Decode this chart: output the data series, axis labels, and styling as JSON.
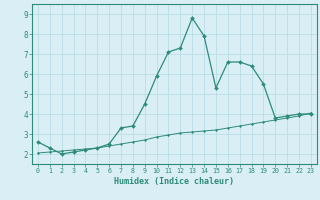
{
  "xlabel": "Humidex (Indice chaleur)",
  "x_main": [
    0,
    1,
    2,
    3,
    4,
    5,
    6,
    7,
    8,
    9,
    10,
    11,
    12,
    13,
    14,
    15,
    16,
    17,
    18,
    19,
    20,
    21,
    22,
    23
  ],
  "y_main": [
    2.6,
    2.3,
    2.0,
    2.1,
    2.2,
    2.3,
    2.5,
    3.3,
    3.4,
    4.5,
    5.9,
    7.1,
    7.3,
    8.8,
    7.9,
    5.3,
    6.6,
    6.6,
    6.4,
    5.5,
    3.8,
    3.9,
    4.0,
    4.0
  ],
  "x_trend": [
    0,
    1,
    2,
    3,
    4,
    5,
    6,
    7,
    8,
    9,
    10,
    11,
    12,
    13,
    14,
    15,
    16,
    17,
    18,
    19,
    20,
    21,
    22,
    23
  ],
  "y_trend": [
    2.05,
    2.1,
    2.15,
    2.2,
    2.25,
    2.3,
    2.4,
    2.5,
    2.6,
    2.7,
    2.85,
    2.95,
    3.05,
    3.1,
    3.15,
    3.2,
    3.3,
    3.4,
    3.5,
    3.6,
    3.7,
    3.8,
    3.9,
    4.05
  ],
  "line_color": "#2e8b7a",
  "bg_color": "#d9eff5",
  "grid_color": "#b8dde6",
  "ylim": [
    1.5,
    9.5
  ],
  "xlim": [
    -0.5,
    23.5
  ],
  "yticks": [
    2,
    3,
    4,
    5,
    6,
    7,
    8,
    9
  ],
  "xticks": [
    0,
    1,
    2,
    3,
    4,
    5,
    6,
    7,
    8,
    9,
    10,
    11,
    12,
    13,
    14,
    15,
    16,
    17,
    18,
    19,
    20,
    21,
    22,
    23
  ]
}
